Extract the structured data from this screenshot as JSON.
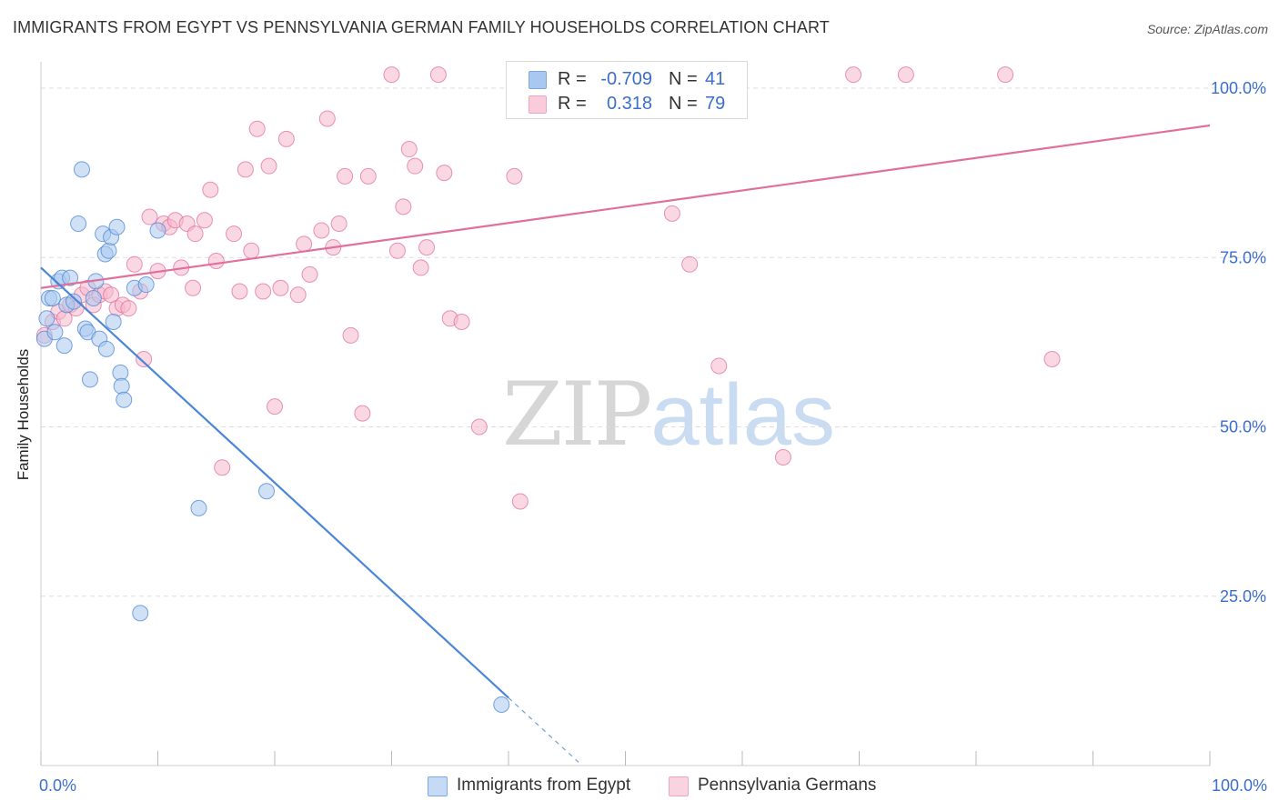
{
  "title": "IMMIGRANTS FROM EGYPT VS PENNSYLVANIA GERMAN FAMILY HOUSEHOLDS CORRELATION CHART",
  "source": "Source: ZipAtlas.com",
  "watermark": {
    "part1": "ZIP",
    "part2": "atlas"
  },
  "legend": {
    "rows": [
      {
        "r_label": "R =",
        "r_value": "-0.709",
        "n_label": "N =",
        "n_value": "41",
        "color": "#a9c8ef"
      },
      {
        "r_label": "R =",
        "r_value": "0.318",
        "n_label": "N =",
        "n_value": "79",
        "color": "#f5b8cc"
      }
    ]
  },
  "bottom_legend": [
    {
      "label": "Immigrants from Egypt",
      "color": "#a9c8ef"
    },
    {
      "label": "Pennsylvania Germans",
      "color": "#f5b8cc"
    }
  ],
  "chart_data": {
    "type": "scatter",
    "title": "IMMIGRANTS FROM EGYPT VS PENNSYLVANIA GERMAN FAMILY HOUSEHOLDS CORRELATION CHART",
    "xlabel": "",
    "ylabel": "Family Households",
    "xlim": [
      0,
      100
    ],
    "ylim": [
      0,
      105
    ],
    "x_tick_labels": [
      "0.0%",
      "100.0%"
    ],
    "y_ticks": [
      25,
      50,
      75,
      100
    ],
    "y_tick_labels": [
      "25.0%",
      "50.0%",
      "75.0%",
      "100.0%"
    ],
    "grid": true,
    "legend_position": "top-center",
    "series": [
      {
        "name": "Immigrants from Egypt",
        "color": "#4a86d6",
        "fill": "#a9c8ef",
        "r": -0.709,
        "n": 41,
        "trend": {
          "x0": 0,
          "y0": 73.5,
          "x1": 40,
          "y1": 10,
          "dash_to_x": 46
        },
        "points": [
          [
            0.3,
            63
          ],
          [
            0.5,
            66
          ],
          [
            0.7,
            69
          ],
          [
            1.0,
            69
          ],
          [
            1.2,
            64
          ],
          [
            1.5,
            71.5
          ],
          [
            1.8,
            72
          ],
          [
            2.0,
            62
          ],
          [
            2.2,
            68
          ],
          [
            2.5,
            72
          ],
          [
            2.8,
            68.5
          ],
          [
            3.2,
            80
          ],
          [
            3.5,
            88
          ],
          [
            3.8,
            64.5
          ],
          [
            4.0,
            64
          ],
          [
            4.2,
            57
          ],
          [
            4.5,
            69
          ],
          [
            4.7,
            71.5
          ],
          [
            5.0,
            63
          ],
          [
            5.3,
            78.5
          ],
          [
            5.5,
            75.5
          ],
          [
            5.6,
            61.5
          ],
          [
            5.8,
            76
          ],
          [
            6.0,
            78
          ],
          [
            6.2,
            65.5
          ],
          [
            6.5,
            79.5
          ],
          [
            6.8,
            58
          ],
          [
            6.9,
            56
          ],
          [
            7.1,
            54
          ],
          [
            8.0,
            70.5
          ],
          [
            8.5,
            22.5
          ],
          [
            9.0,
            71
          ],
          [
            10.0,
            79
          ],
          [
            13.5,
            38
          ],
          [
            19.3,
            40.5
          ],
          [
            39.4,
            9
          ]
        ]
      },
      {
        "name": "Pennsylvania Germans",
        "color": "#e0709b",
        "fill": "#f5b8cc",
        "r": 0.318,
        "n": 79,
        "trend": {
          "x0": 0,
          "y0": 70.5,
          "x1": 100,
          "y1": 94.5
        },
        "points": [
          [
            0.3,
            63.5
          ],
          [
            1.0,
            65.5
          ],
          [
            1.5,
            67
          ],
          [
            2.0,
            66
          ],
          [
            2.5,
            68
          ],
          [
            3.0,
            67.5
          ],
          [
            3.5,
            69.5
          ],
          [
            4.0,
            70.5
          ],
          [
            4.5,
            68
          ],
          [
            5.0,
            69.5
          ],
          [
            5.5,
            70
          ],
          [
            6.0,
            69.5
          ],
          [
            6.5,
            67.5
          ],
          [
            7.0,
            68
          ],
          [
            7.5,
            67.5
          ],
          [
            8.0,
            74
          ],
          [
            8.5,
            70
          ],
          [
            8.8,
            60
          ],
          [
            9.3,
            81
          ],
          [
            10.0,
            73
          ],
          [
            10.5,
            80
          ],
          [
            11.0,
            79.5
          ],
          [
            11.5,
            80.5
          ],
          [
            12.0,
            73.5
          ],
          [
            12.5,
            80
          ],
          [
            13.0,
            70.5
          ],
          [
            13.2,
            78.5
          ],
          [
            14.0,
            80.5
          ],
          [
            14.5,
            85
          ],
          [
            15.0,
            74.5
          ],
          [
            15.5,
            44
          ],
          [
            16.5,
            78.5
          ],
          [
            17.0,
            70
          ],
          [
            17.5,
            88
          ],
          [
            18.0,
            76
          ],
          [
            18.5,
            94
          ],
          [
            19.0,
            70
          ],
          [
            19.5,
            88.5
          ],
          [
            20.0,
            53
          ],
          [
            20.5,
            70.5
          ],
          [
            21.0,
            92.5
          ],
          [
            22.0,
            69.5
          ],
          [
            22.5,
            77
          ],
          [
            23.0,
            72.5
          ],
          [
            24.0,
            79
          ],
          [
            24.5,
            95.5
          ],
          [
            25.0,
            76.5
          ],
          [
            25.5,
            80
          ],
          [
            26.0,
            87
          ],
          [
            26.5,
            63.5
          ],
          [
            27.5,
            52
          ],
          [
            28.0,
            87
          ],
          [
            30.0,
            102
          ],
          [
            30.5,
            76
          ],
          [
            31.0,
            82.5
          ],
          [
            31.5,
            91
          ],
          [
            32.0,
            88.5
          ],
          [
            32.5,
            73.5
          ],
          [
            33.0,
            76.5
          ],
          [
            34.0,
            102
          ],
          [
            34.5,
            87.5
          ],
          [
            35.0,
            66
          ],
          [
            36.0,
            65.5
          ],
          [
            37.5,
            50
          ],
          [
            40.5,
            87
          ],
          [
            41.0,
            39
          ],
          [
            41.5,
            102
          ],
          [
            46.0,
            102
          ],
          [
            53.5,
            102
          ],
          [
            54.0,
            81.5
          ],
          [
            55.0,
            102
          ],
          [
            55.5,
            74
          ],
          [
            58.0,
            59
          ],
          [
            63.5,
            45.5
          ],
          [
            69.5,
            102
          ],
          [
            74.0,
            102
          ],
          [
            82.5,
            102
          ],
          [
            86.5,
            60
          ]
        ]
      }
    ]
  }
}
